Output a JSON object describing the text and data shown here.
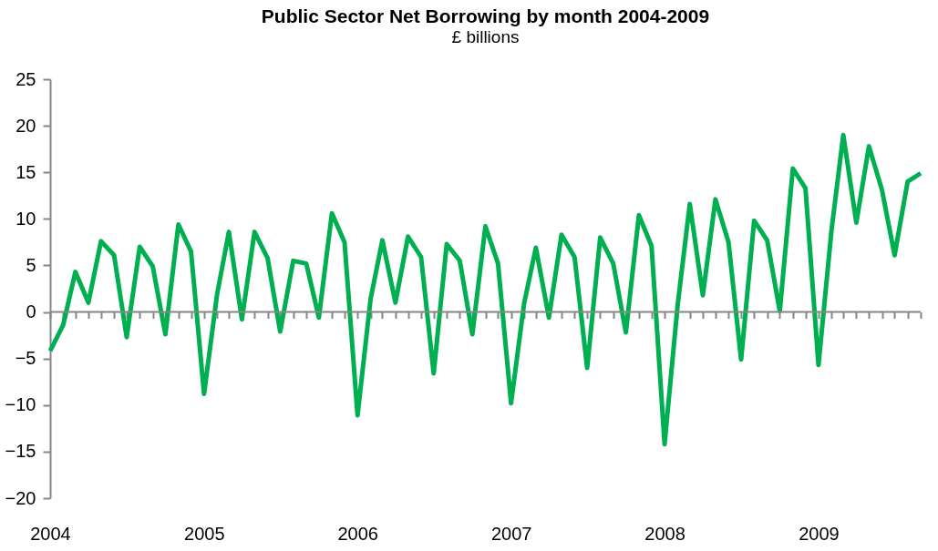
{
  "chart_data": {
    "type": "line",
    "title": "Public Sector Net Borrowing by month 2004-2009",
    "subtitle": "£ billions",
    "x": [
      "2004-01",
      "2004-02",
      "2004-03",
      "2004-04",
      "2004-05",
      "2004-06",
      "2004-07",
      "2004-08",
      "2004-09",
      "2004-10",
      "2004-11",
      "2004-12",
      "2005-01",
      "2005-02",
      "2005-03",
      "2005-04",
      "2005-05",
      "2005-06",
      "2005-07",
      "2005-08",
      "2005-09",
      "2005-10",
      "2005-11",
      "2005-12",
      "2006-01",
      "2006-02",
      "2006-03",
      "2006-04",
      "2006-05",
      "2006-06",
      "2006-07",
      "2006-08",
      "2006-09",
      "2006-10",
      "2006-11",
      "2006-12",
      "2007-01",
      "2007-02",
      "2007-03",
      "2007-04",
      "2007-05",
      "2007-06",
      "2007-07",
      "2007-08",
      "2007-09",
      "2007-10",
      "2007-11",
      "2007-12",
      "2008-01",
      "2008-02",
      "2008-03",
      "2008-04",
      "2008-05",
      "2008-06",
      "2008-07",
      "2008-08",
      "2008-09",
      "2008-10",
      "2008-11",
      "2008-12",
      "2009-01",
      "2009-02",
      "2009-03",
      "2009-04",
      "2009-05",
      "2009-06",
      "2009-07",
      "2009-08",
      "2009-09"
    ],
    "series": [
      {
        "color": "#00b050",
        "values": [
          -4.2,
          -1.4,
          4.3,
          1.0,
          7.6,
          6.1,
          -2.7,
          7.0,
          4.9,
          -2.4,
          9.4,
          6.5,
          -8.8,
          1.9,
          8.6,
          -0.8,
          8.6,
          5.8,
          -2.1,
          5.5,
          5.2,
          -0.6,
          10.6,
          7.5,
          -11.1,
          1.4,
          7.7,
          1.0,
          8.1,
          5.9,
          -6.6,
          7.3,
          5.5,
          -2.4,
          9.2,
          5.2,
          -9.8,
          0.9,
          6.9,
          -0.6,
          8.3,
          5.9,
          -6.0,
          8.0,
          5.2,
          -2.2,
          10.4,
          7.1,
          -14.2,
          0.7,
          11.6,
          1.8,
          12.1,
          7.5,
          -5.1,
          9.8,
          7.7,
          0.1,
          15.4,
          13.3,
          -5.7,
          8.8,
          19.0,
          9.6,
          17.8,
          13.1,
          6.1,
          14.0,
          14.9
        ]
      }
    ],
    "xlim": [
      "2004-01",
      "2009-09"
    ],
    "xticks": [
      {
        "value": "2004-01",
        "label": "2004"
      },
      {
        "value": "2005-01",
        "label": "2005"
      },
      {
        "value": "2006-01",
        "label": "2006"
      },
      {
        "value": "2007-01",
        "label": "2007"
      },
      {
        "value": "2008-01",
        "label": "2008"
      },
      {
        "value": "2009-01",
        "label": "2009"
      }
    ],
    "ylim": [
      -20,
      25
    ],
    "yticks": [
      -20,
      -15,
      -10,
      -5,
      0,
      5,
      10,
      15,
      20,
      25
    ],
    "ref_lines": [
      {
        "axis": "y",
        "value": 0,
        "color": "#868686"
      }
    ],
    "grid": false,
    "legend": false,
    "marker": "none",
    "line_style": "solid"
  }
}
